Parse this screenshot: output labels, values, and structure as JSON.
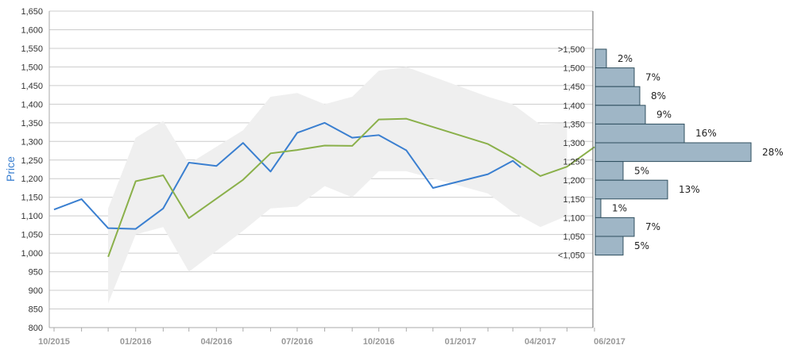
{
  "chart_data": {
    "type": "line",
    "ylabel": "Price",
    "ylim": [
      800,
      1650
    ],
    "y_ticks": [
      "800",
      "850",
      "900",
      "950",
      "1,000",
      "1,050",
      "1,100",
      "1,150",
      "1,200",
      "1,250",
      "1,300",
      "1,350",
      "1,400",
      "1,450",
      "1,500",
      "1,550",
      "1,600",
      "1,650"
    ],
    "x_ticks": [
      "10/2015",
      "01/2016",
      "04/2016",
      "07/2016",
      "10/2016",
      "01/2017",
      "04/2017",
      "06/2017"
    ],
    "grid": true,
    "colors": {
      "blue": "#3a7fd0",
      "green": "#8ab04a",
      "band": "#efefef",
      "hist": "#9fb6c6",
      "grid": "#cccccc"
    },
    "series": [
      {
        "values": [
          {
            "x": "2015-10-01",
            "y": 1117
          },
          {
            "x": "2015-11-01",
            "y": 1145
          },
          {
            "x": "2015-12-01",
            "y": 1067
          },
          {
            "x": "2016-01-01",
            "y": 1065
          },
          {
            "x": "2016-02-01",
            "y": 1120
          },
          {
            "x": "2016-03-01",
            "y": 1243
          },
          {
            "x": "2016-04-01",
            "y": 1234
          },
          {
            "x": "2016-05-01",
            "y": 1296
          },
          {
            "x": "2016-06-01",
            "y": 1219
          },
          {
            "x": "2016-07-01",
            "y": 1323
          },
          {
            "x": "2016-08-01",
            "y": 1350
          },
          {
            "x": "2016-09-01",
            "y": 1310
          },
          {
            "x": "2016-10-01",
            "y": 1317
          },
          {
            "x": "2016-11-01",
            "y": 1276
          },
          {
            "x": "2016-12-01",
            "y": 1175
          },
          {
            "x": "2017-02-01",
            "y": 1212
          },
          {
            "x": "2017-03-01",
            "y": 1248
          },
          {
            "x": "2017-03-10",
            "y": 1230
          }
        ]
      },
      {
        "values": [
          {
            "x": "2015-12-01",
            "y": 990
          },
          {
            "x": "2016-01-01",
            "y": 1193
          },
          {
            "x": "2016-02-01",
            "y": 1209
          },
          {
            "x": "2016-03-01",
            "y": 1094
          },
          {
            "x": "2016-05-01",
            "y": 1197
          },
          {
            "x": "2016-06-01",
            "y": 1268
          },
          {
            "x": "2016-07-01",
            "y": 1277
          },
          {
            "x": "2016-08-01",
            "y": 1289
          },
          {
            "x": "2016-09-01",
            "y": 1288
          },
          {
            "x": "2016-10-01",
            "y": 1359
          },
          {
            "x": "2016-11-01",
            "y": 1361
          },
          {
            "x": "2017-02-01",
            "y": 1293
          },
          {
            "x": "2017-03-01",
            "y": 1256
          },
          {
            "x": "2017-04-01",
            "y": 1207
          },
          {
            "x": "2017-05-01",
            "y": 1232
          },
          {
            "x": "2017-06-01",
            "y": 1285
          }
        ]
      }
    ],
    "range_band": [
      {
        "x": "2015-12-01",
        "high": 1120,
        "low": 865
      },
      {
        "x": "2016-01-01",
        "high": 1310,
        "low": 1050
      },
      {
        "x": "2016-02-01",
        "high": 1355,
        "low": 1070
      },
      {
        "x": "2016-03-01",
        "high": 1240,
        "low": 950
      },
      {
        "x": "2016-05-01",
        "high": 1330,
        "low": 1060
      },
      {
        "x": "2016-06-01",
        "high": 1420,
        "low": 1120
      },
      {
        "x": "2016-07-01",
        "high": 1430,
        "low": 1125
      },
      {
        "x": "2016-08-01",
        "high": 1400,
        "low": 1180
      },
      {
        "x": "2016-09-01",
        "high": 1420,
        "low": 1150
      },
      {
        "x": "2016-10-01",
        "high": 1490,
        "low": 1220
      },
      {
        "x": "2016-11-01",
        "high": 1500,
        "low": 1220
      },
      {
        "x": "2017-02-01",
        "high": 1420,
        "low": 1160
      },
      {
        "x": "2017-03-01",
        "high": 1400,
        "low": 1110
      },
      {
        "x": "2017-04-01",
        "high": 1345,
        "low": 1070
      },
      {
        "x": "2017-05-01",
        "high": 1350,
        "low": 1100
      }
    ],
    "histogram": {
      "bins": [
        {
          "label": ">1,500",
          "pct": 2,
          "text": "2%"
        },
        {
          "label": "1,500",
          "pct": 7,
          "text": "7%"
        },
        {
          "label": "1,450",
          "pct": 8,
          "text": "8%"
        },
        {
          "label": "1,400",
          "pct": 9,
          "text": "9%"
        },
        {
          "label": "1,350",
          "pct": 16,
          "text": "16%"
        },
        {
          "label": "1,300",
          "pct": 28,
          "text": "28%"
        },
        {
          "label": "1,250",
          "pct": 5,
          "text": "5%"
        },
        {
          "label": "1,200",
          "pct": 13,
          "text": "13%"
        },
        {
          "label": "1,150",
          "pct": 1,
          "text": "1%"
        },
        {
          "label": "1,100",
          "pct": 7,
          "text": "7%"
        },
        {
          "label": "1,050",
          "pct": 5,
          "text": "5%"
        },
        {
          "label": "<1,050",
          "pct": null,
          "text": ""
        }
      ]
    }
  }
}
